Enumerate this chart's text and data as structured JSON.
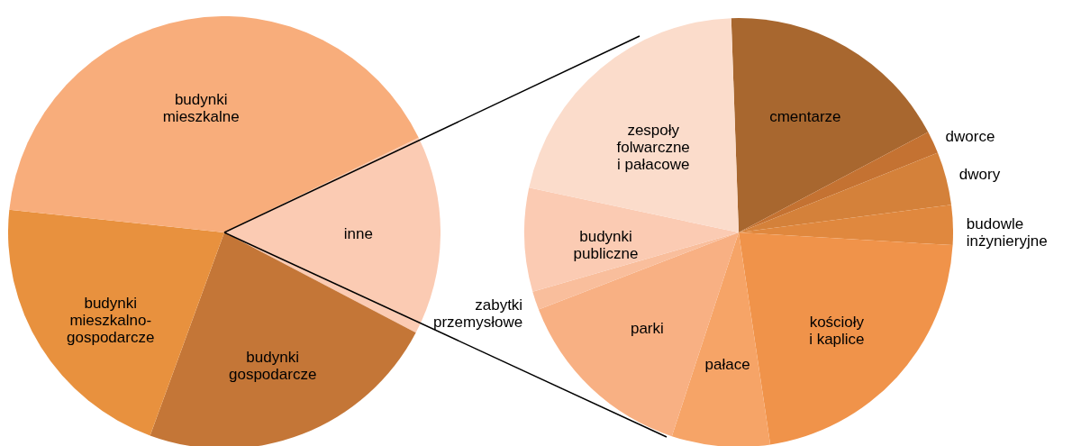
{
  "chart_data": [
    {
      "type": "pie",
      "categories": [
        "inne",
        "budynki\ngospodarcze",
        "budynki\nmieszkalno-\ngospodarcze",
        "budynki\nmieszkalne"
      ],
      "values": [
        14.9,
        22.9,
        21.1,
        41.1
      ],
      "colors": [
        "#fbcbb3",
        "#c47637",
        "#e8913e",
        "#f8ad7b"
      ],
      "data_labels": false,
      "legend": false
    },
    {
      "type": "pie",
      "categories": [
        "cmentarze",
        "dworce",
        "dwory",
        "budowle\ninżynieryjne",
        "kościoły\ni kaplice",
        "pałace",
        "parki",
        "zabytki\nprzemysłowe",
        "budynki\npubliczne",
        "zespoły\nfolwarczne\ni pałacowe"
      ],
      "values": [
        17.8,
        1.7,
        4.0,
        3.0,
        21.7,
        7.4,
        14.1,
        1.4,
        7.8,
        21.1
      ],
      "colors": [
        "#a8672f",
        "#c47232",
        "#d4813a",
        "#e0883e",
        "#f0934a",
        "#f6a467",
        "#f8b083",
        "#f9be9c",
        "#fbcbb3",
        "#fbdccb"
      ],
      "data_labels": false,
      "legend": false
    }
  ]
}
